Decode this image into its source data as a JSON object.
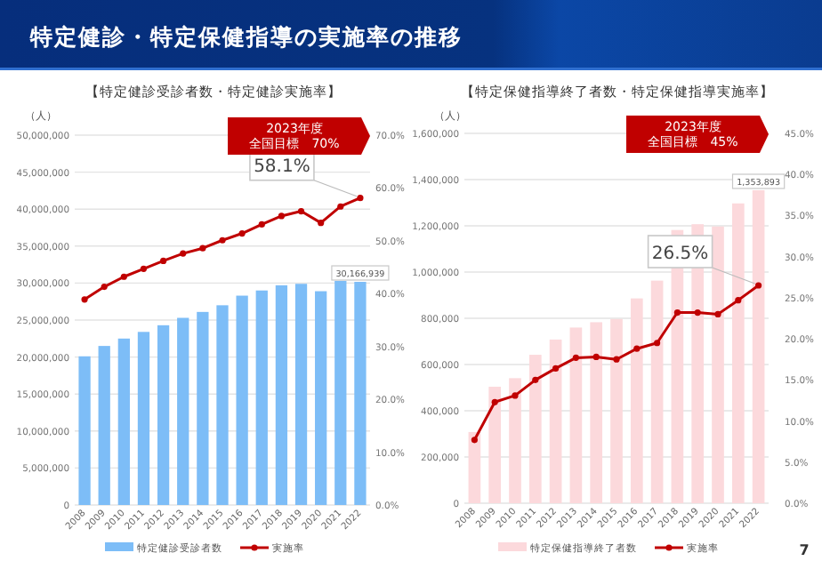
{
  "chart_data": [
    {
      "type": "bar",
      "title": "【特定健診受診者数・特定健診実施率】",
      "ylabel": "（人）",
      "categories": [
        "2008",
        "2009",
        "2010",
        "2011",
        "2012",
        "2013",
        "2014",
        "2015",
        "2016",
        "2017",
        "2018",
        "2019",
        "2020",
        "2021",
        "2022"
      ],
      "ylim": [
        0,
        50000000
      ],
      "yticks": [
        0,
        {
          "value": 5000000,
          "label": "5,000,000"
        },
        {
          "value": 10000000,
          "label": "10,000,000"
        },
        {
          "value": 15000000,
          "label": "15,000,000"
        },
        {
          "value": 20000000,
          "label": "20,000,000"
        },
        {
          "value": 25000000,
          "label": "25,000,000"
        },
        {
          "value": 30000000,
          "label": "30,000,000"
        },
        {
          "value": 35000000,
          "label": "35,000,000"
        },
        {
          "value": 40000000,
          "label": "40,000,000"
        },
        {
          "value": 45000000,
          "label": "45,000,000"
        },
        {
          "value": 50000000,
          "label": "50,000,000"
        }
      ],
      "y2lim": [
        0,
        70
      ],
      "y2ticks": [
        {
          "value": 0,
          "label": "0.0%"
        },
        {
          "value": 10,
          "label": "10.0%"
        },
        {
          "value": 20,
          "label": "20.0%"
        },
        {
          "value": 30,
          "label": "30.0%"
        },
        {
          "value": 40,
          "label": "40.0%"
        },
        {
          "value": 50,
          "label": "50.0%"
        },
        {
          "value": 60,
          "label": "60.0%"
        },
        {
          "value": 70,
          "label": "70.0%"
        }
      ],
      "grid": "y",
      "legend": "bottom",
      "marker": "circle",
      "series": [
        {
          "name": "特定健診受診者数",
          "type": "bar",
          "color": "#7dbdf7",
          "values": [
            20100000,
            21500000,
            22500000,
            23400000,
            24300000,
            25300000,
            26100000,
            27000000,
            28300000,
            29000000,
            29700000,
            29900000,
            28900000,
            30300000,
            30166939
          ],
          "value_labels": [
            null,
            null,
            null,
            null,
            null,
            null,
            null,
            null,
            null,
            null,
            null,
            null,
            null,
            null,
            "30,166,939"
          ]
        },
        {
          "name": "実施率",
          "type": "line",
          "axis": "y2",
          "color": "#c00000",
          "values": [
            38.9,
            41.3,
            43.2,
            44.7,
            46.2,
            47.6,
            48.6,
            50.1,
            51.4,
            53.1,
            54.7,
            55.6,
            53.4,
            56.5,
            58.1
          ],
          "value_labels": [
            null,
            null,
            null,
            null,
            null,
            null,
            null,
            null,
            null,
            null,
            null,
            null,
            null,
            null,
            "58.1%"
          ]
        }
      ],
      "annotations": [
        "特定健診・特定保健指導の実施率の推移",
        "2023年度",
        "全国目標　70%"
      ]
    },
    {
      "type": "bar",
      "title": "【特定保健指導終了者数・特定保健指導実施率】",
      "ylabel": "（人）",
      "categories": [
        "2008",
        "2009",
        "2010",
        "2011",
        "2012",
        "2013",
        "2014",
        "2015",
        "2016",
        "2017",
        "2018",
        "2019",
        "2020",
        "2021",
        "2022"
      ],
      "ylim": [
        0,
        1600000
      ],
      "yticks": [
        0,
        {
          "value": 200000,
          "label": "200,000"
        },
        {
          "value": 400000,
          "label": "400,000"
        },
        {
          "value": 600000,
          "label": "600,000"
        },
        {
          "value": 800000,
          "label": "800,000"
        },
        {
          "value": 1000000,
          "label": "1,000,000"
        },
        {
          "value": 1200000,
          "label": "1,200,000"
        },
        {
          "value": 1400000,
          "label": "1,400,000"
        },
        {
          "value": 1600000,
          "label": "1,600,000"
        }
      ],
      "y2lim": [
        0,
        45
      ],
      "y2ticks": [
        {
          "value": 0,
          "label": "0.0%"
        },
        {
          "value": 5,
          "label": "5.0%"
        },
        {
          "value": 10,
          "label": "10.0%"
        },
        {
          "value": 15,
          "label": "15.0%"
        },
        {
          "value": 20,
          "label": "20.0%"
        },
        {
          "value": 25,
          "label": "25.0%"
        },
        {
          "value": 30,
          "label": "30.0%"
        },
        {
          "value": 35,
          "label": "35.0%"
        },
        {
          "value": 40,
          "label": "40.0%"
        },
        {
          "value": 45,
          "label": "45.0%"
        }
      ],
      "grid": "y",
      "legend": "bottom",
      "marker": "circle",
      "series": [
        {
          "name": "特定保健指導終了者数",
          "type": "bar",
          "color": "#fcd9dc",
          "values": [
            308000,
            504000,
            541000,
            642000,
            708000,
            760000,
            783000,
            797000,
            886000,
            963000,
            1182000,
            1207000,
            1197000,
            1297000,
            1353893
          ],
          "value_labels": [
            null,
            null,
            null,
            null,
            null,
            null,
            null,
            null,
            null,
            null,
            null,
            null,
            null,
            null,
            "1,353,893"
          ]
        },
        {
          "name": "実施率",
          "type": "line",
          "axis": "y2",
          "color": "#c00000",
          "values": [
            7.7,
            12.3,
            13.1,
            15.0,
            16.4,
            17.7,
            17.8,
            17.5,
            18.8,
            19.5,
            23.2,
            23.2,
            23.0,
            24.7,
            26.5
          ],
          "value_labels": [
            null,
            null,
            null,
            null,
            null,
            null,
            null,
            null,
            null,
            null,
            null,
            null,
            null,
            null,
            "26.5%"
          ]
        }
      ],
      "annotations": [
        "2023年度",
        "全国目標　45%",
        "7"
      ]
    }
  ]
}
